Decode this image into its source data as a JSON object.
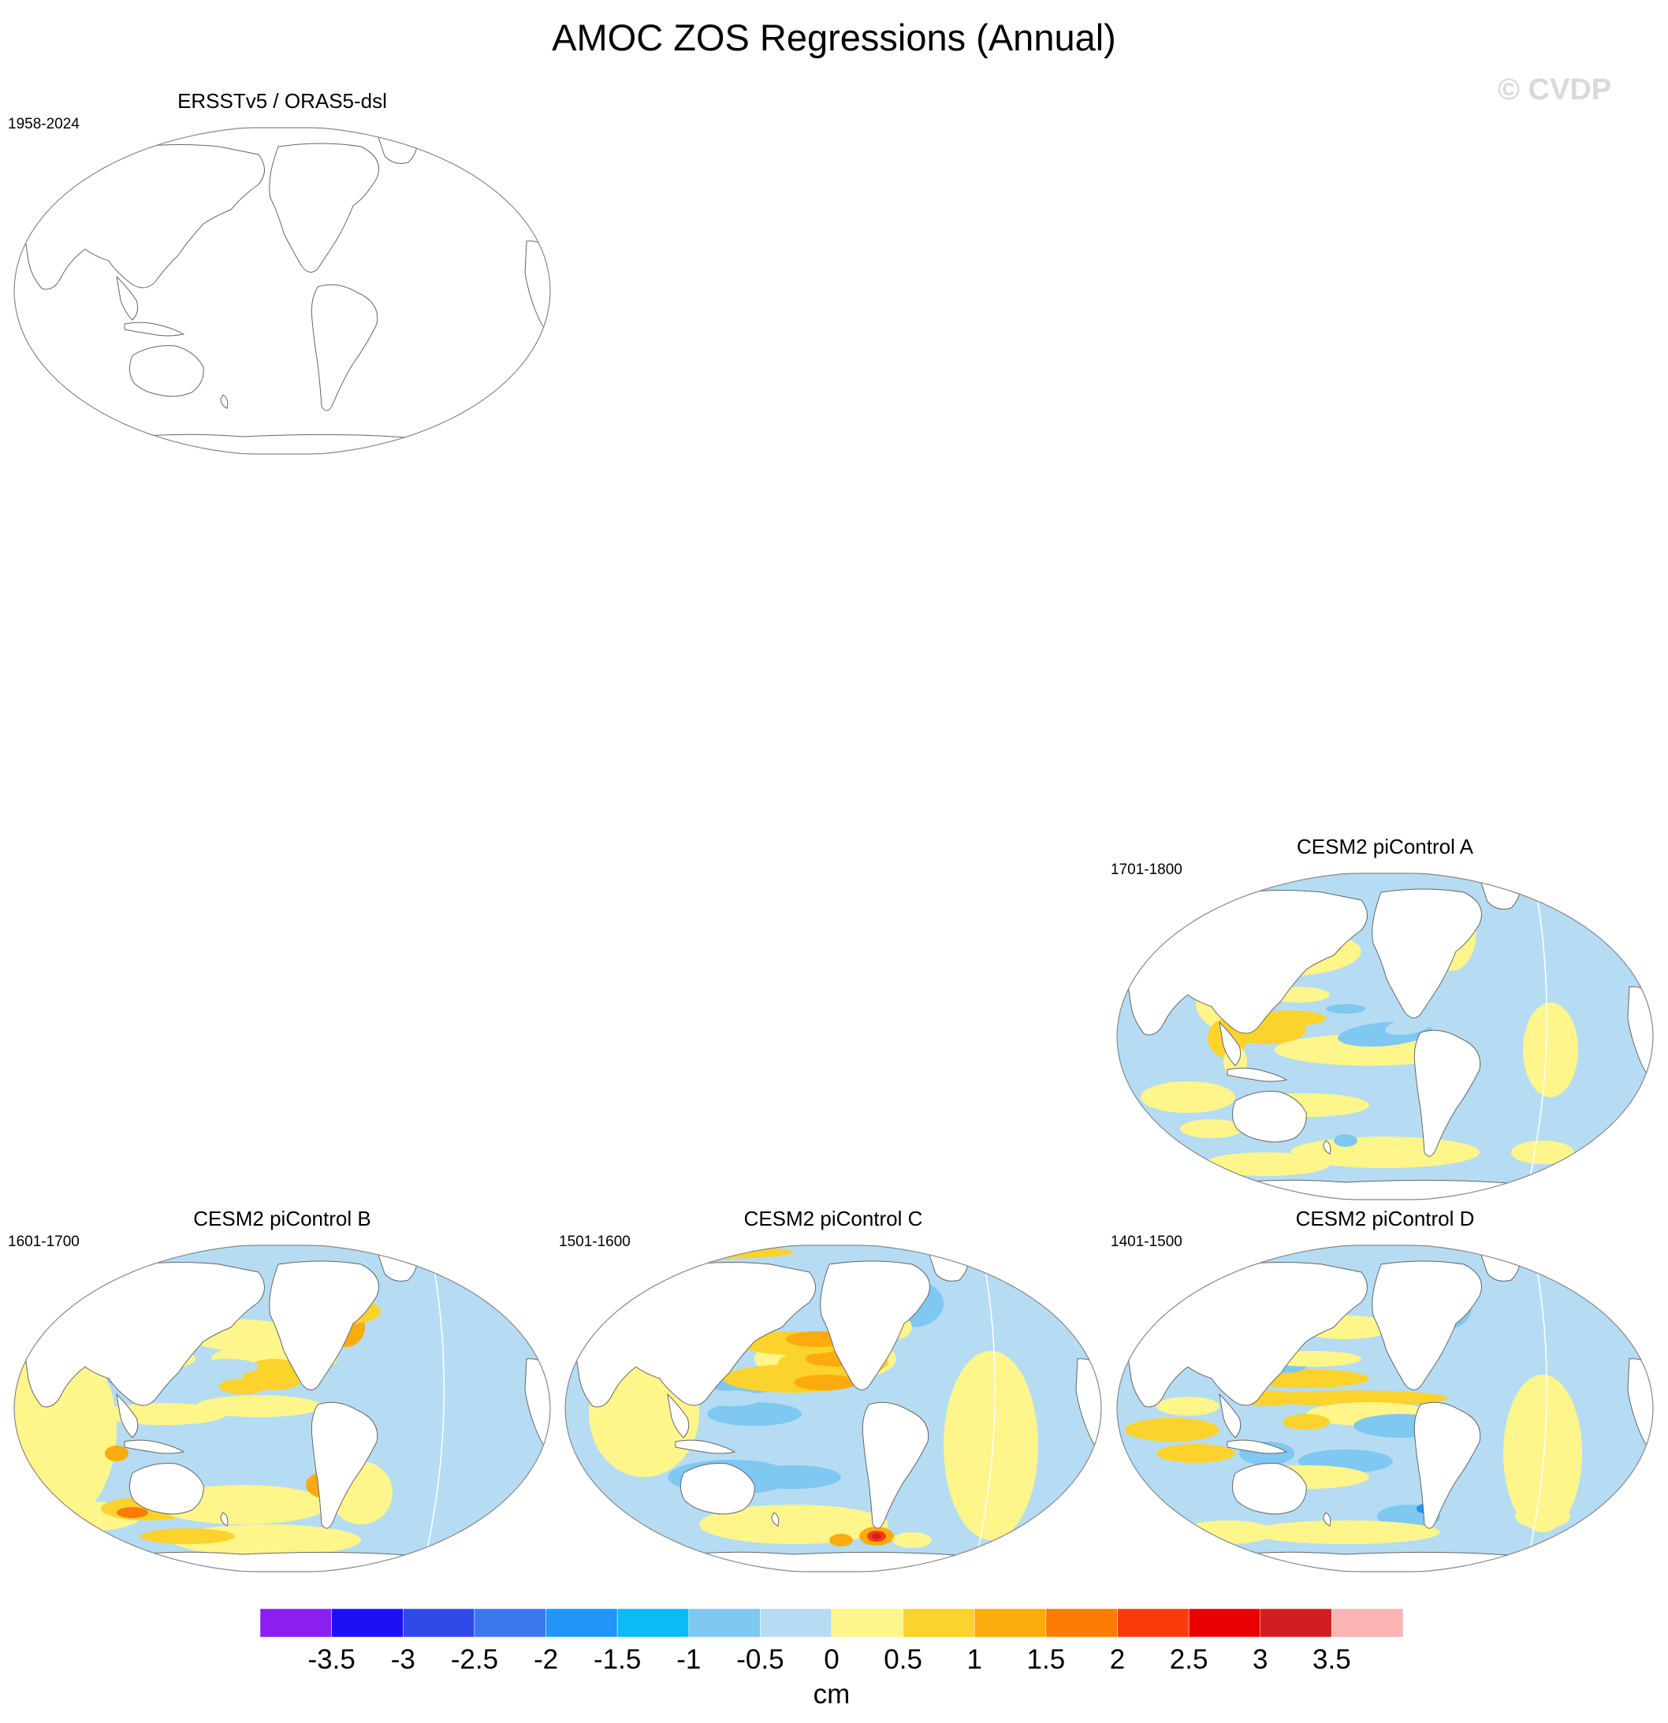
{
  "title": "AMOC ZOS Regressions (Annual)",
  "watermark": "© CVDP",
  "chart_data": {
    "type": "heatmap",
    "title": "AMOC ZOS Regressions (Annual)",
    "projection": "Robinson, Pacific-centered",
    "panels": [
      {
        "title": "ERSSTv5 / ORAS5-dsl",
        "period": "1958-2024",
        "field": "none"
      },
      {
        "title": "CESM2 piControl A",
        "period": "1701-1800",
        "field": "A"
      },
      {
        "title": "CESM2 piControl B",
        "period": "1601-1700",
        "field": "B"
      },
      {
        "title": "CESM2 piControl C",
        "period": "1501-1600",
        "field": "C"
      },
      {
        "title": "CESM2 piControl D",
        "period": "1401-1500",
        "field": "D"
      }
    ],
    "colorbar": {
      "units": "cm",
      "tick_labels": [
        "-3.5",
        "-3",
        "-2.5",
        "-2",
        "-1.5",
        "-1",
        "-0.5",
        "0",
        "0.5",
        "1",
        "1.5",
        "2",
        "2.5",
        "3",
        "3.5"
      ],
      "levels": [
        -3.5,
        -3,
        -2.5,
        -2,
        -1.5,
        -1,
        -0.5,
        0,
        0.5,
        1,
        1.5,
        2,
        2.5,
        3,
        3.5
      ],
      "colors": [
        "#8a1ff0",
        "#1e0ff5",
        "#2f4ae8",
        "#3b78ee",
        "#2196f6",
        "#0cbaf7",
        "#7ec8f2",
        "#b5dcf3",
        "#fef58b",
        "#fcd22d",
        "#fcab0e",
        "#fc7c06",
        "#f93b0c",
        "#e90000",
        "#d21e22",
        "#fbb4b4"
      ]
    }
  }
}
